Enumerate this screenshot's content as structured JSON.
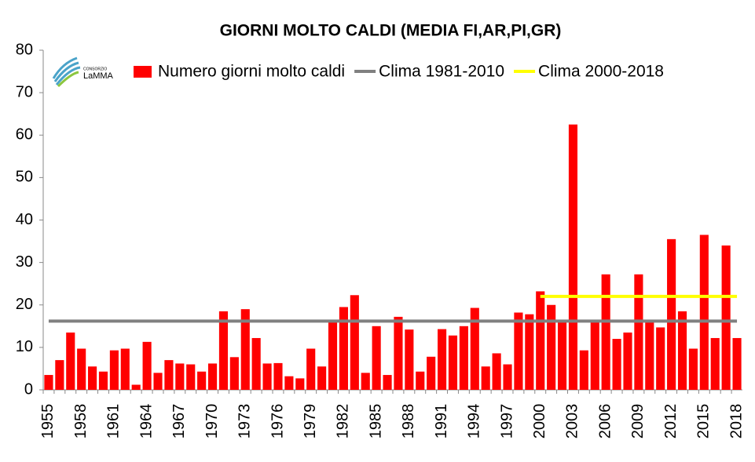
{
  "chart_data": {
    "type": "bar",
    "title": "GIORNI MOLTO CALDI (MEDIA FI,AR,PI,GR)",
    "logo": {
      "small": "CONSORZIO",
      "name": "LaMMA"
    },
    "categories": [
      "1955",
      null,
      null,
      "1958",
      null,
      null,
      "1961",
      null,
      null,
      "1964",
      null,
      null,
      "1967",
      null,
      null,
      "1970",
      null,
      null,
      "1973",
      null,
      null,
      "1976",
      null,
      null,
      "1979",
      null,
      null,
      "1982",
      null,
      null,
      "1985",
      null,
      null,
      "1988",
      null,
      null,
      "1991",
      null,
      null,
      "1994",
      null,
      null,
      "1997",
      null,
      null,
      "2000",
      null,
      null,
      "2003",
      null,
      null,
      "2006",
      null,
      null,
      "2009",
      null,
      null,
      "2012",
      null,
      null,
      "2015",
      null,
      null,
      "2018"
    ],
    "series": [
      {
        "name": "Numero giorni molto caldi",
        "type": "bar",
        "color": "#ff0000",
        "values": [
          3.5,
          7,
          13.5,
          9.7,
          5.5,
          4.3,
          9.3,
          9.7,
          1.2,
          11.3,
          4,
          7,
          6.2,
          6,
          4.3,
          6.2,
          18.5,
          7.7,
          19,
          12.2,
          6.2,
          6.3,
          3.2,
          2.7,
          9.7,
          5.5,
          16,
          19.5,
          22.3,
          4,
          15,
          3.5,
          17.2,
          14.2,
          4.3,
          7.8,
          14.3,
          12.8,
          15,
          19.3,
          5.5,
          8.6,
          6,
          18.2,
          17.8,
          23.2,
          20,
          16,
          62.5,
          9.3,
          16,
          27.2,
          12,
          13.5,
          27.2,
          16,
          14.7,
          35.5,
          18.5,
          9.7,
          36.5,
          12.2,
          34,
          12.2
        ]
      },
      {
        "name": "Clima 1981-2010",
        "type": "line",
        "color": "#808080",
        "values": [
          16.2,
          16.2,
          16.2,
          16.2,
          16.2,
          16.2,
          16.2,
          16.2,
          16.2,
          16.2,
          16.2,
          16.2,
          16.2,
          16.2,
          16.2,
          16.2,
          16.2,
          16.2,
          16.2,
          16.2,
          16.2,
          16.2,
          16.2,
          16.2,
          16.2,
          16.2,
          16.2,
          16.2,
          16.2,
          16.2,
          16.2,
          16.2,
          16.2,
          16.2,
          16.2,
          16.2,
          16.2,
          16.2,
          16.2,
          16.2,
          16.2,
          16.2,
          16.2,
          16.2,
          16.2,
          16.2,
          16.2,
          16.2,
          16.2,
          16.2,
          16.2,
          16.2,
          16.2,
          16.2,
          16.2,
          16.2,
          16.2,
          16.2,
          16.2,
          16.2,
          16.2,
          16.2,
          16.2,
          16.2
        ]
      },
      {
        "name": "Clima 2000-2018",
        "type": "line",
        "color": "#ffff00",
        "values": [
          null,
          null,
          null,
          null,
          null,
          null,
          null,
          null,
          null,
          null,
          null,
          null,
          null,
          null,
          null,
          null,
          null,
          null,
          null,
          null,
          null,
          null,
          null,
          null,
          null,
          null,
          null,
          null,
          null,
          null,
          null,
          null,
          null,
          null,
          null,
          null,
          null,
          null,
          null,
          null,
          null,
          null,
          null,
          null,
          null,
          22,
          22,
          22,
          22,
          22,
          22,
          22,
          22,
          22,
          22,
          22,
          22,
          22,
          22,
          22,
          22,
          22,
          22,
          22
        ]
      }
    ],
    "ylim": [
      0,
      80
    ],
    "yticks": [
      0,
      10,
      20,
      30,
      40,
      50,
      60,
      70,
      80
    ],
    "grid": false
  }
}
